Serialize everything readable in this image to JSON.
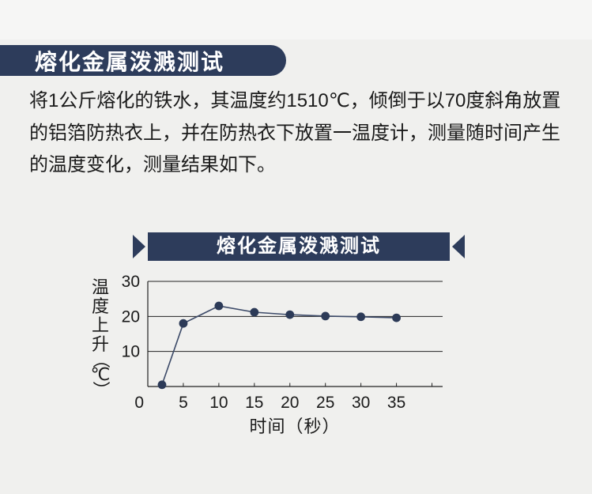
{
  "page": {
    "background": "#f0f0ee",
    "accent_navy": "#2d3c5b"
  },
  "header": {
    "title": "熔化金属泼溅测试"
  },
  "intro": {
    "text": "将1公斤熔化的铁水，其温度约1510℃，倾倒于以70度斜角放置\n的铝箔防热衣上，并在防热衣下放置一温度计，测量随时间产生\n的温度变化，测量结果如下。"
  },
  "chart_data": {
    "type": "line",
    "title": "熔化金属泼溅测试",
    "xlabel": "时间（秒）",
    "ylabel": "温度上升（℃）",
    "x": [
      2,
      5,
      10,
      15,
      20,
      25,
      30,
      35
    ],
    "y": [
      0.5,
      18,
      23,
      21.2,
      20.5,
      20.1,
      19.9,
      19.6
    ],
    "xtick_labels": [
      0,
      5,
      10,
      15,
      20,
      25,
      30,
      35
    ],
    "xtick_marks": [
      5,
      10,
      15,
      20,
      25,
      30,
      35,
      40
    ],
    "yticks": [
      10,
      20,
      30
    ],
    "xlim": [
      0,
      41.5
    ],
    "ylim": [
      0,
      30
    ],
    "grid": "horizontal-only",
    "legend": "none",
    "line_color": "#3c4a68",
    "marker_color": "#2c3a57",
    "axis_color": "#222222",
    "tick_label_color": "#1a1a1a"
  }
}
